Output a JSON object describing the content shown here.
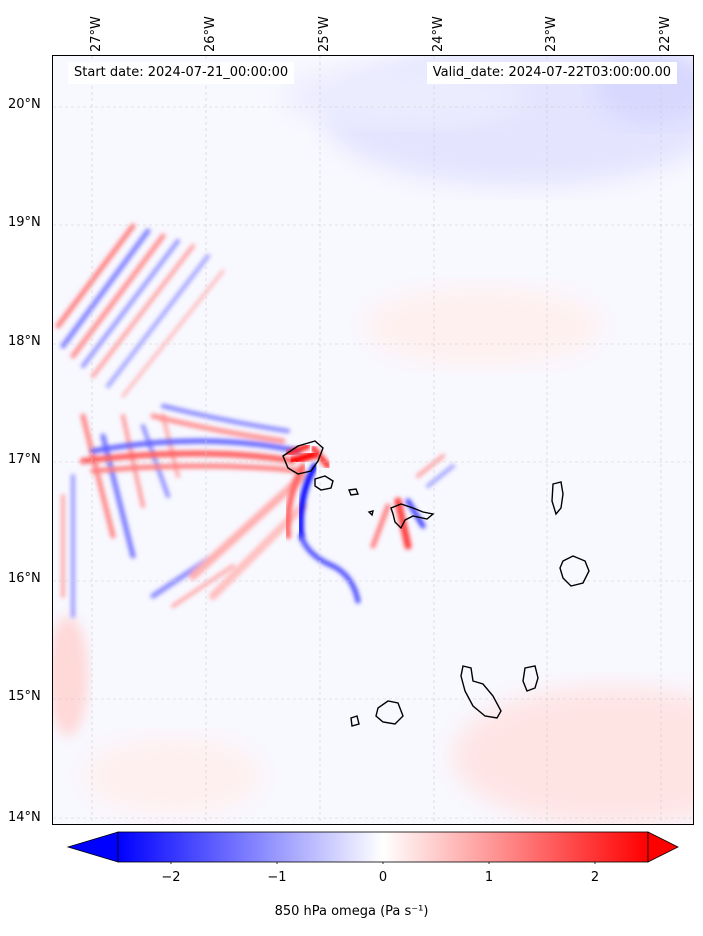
{
  "header": {
    "start_label": "Start date: 2024-07-21_00:00:00",
    "valid_label": "Valid_date: 2024-07-22T03:00:00.00"
  },
  "map": {
    "lon_ticks": [
      "27°W",
      "26°W",
      "25°W",
      "24°W",
      "23°W",
      "22°W"
    ],
    "lat_ticks": [
      "20°N",
      "19°N",
      "18°N",
      "17°N",
      "16°N",
      "15°N",
      "14°N"
    ],
    "lon_range": [
      -27.35,
      -21.7
    ],
    "lat_range": [
      13.95,
      20.45
    ],
    "gridlines": true,
    "colors": {
      "positive": "#ff0000",
      "negative": "#0000ff",
      "neutral": "#ffffff",
      "coastline": "#000000"
    }
  },
  "colorbar": {
    "label": "850 hPa omega (Pa s⁻¹)",
    "ticks": [
      "−2",
      "−1",
      "0",
      "1",
      "2"
    ],
    "tick_values": [
      -2,
      -1,
      0,
      1,
      2
    ],
    "range": [
      -2.5,
      2.5
    ],
    "extend": "both"
  }
}
